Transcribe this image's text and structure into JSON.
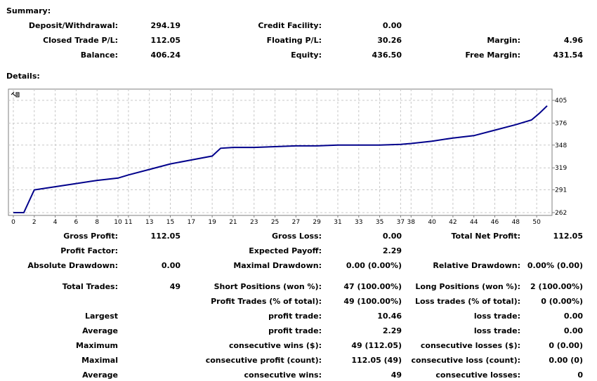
{
  "summary": {
    "title": "Summary:",
    "rows": [
      [
        {
          "label": "Deposit/Withdrawal:",
          "value": "294.19"
        },
        {
          "label": "Credit Facility:",
          "value": "0.00"
        },
        {
          "label": "",
          "value": ""
        }
      ],
      [
        {
          "label": "Closed Trade P/L:",
          "value": "112.05"
        },
        {
          "label": "Floating P/L:",
          "value": "30.26"
        },
        {
          "label": "Margin:",
          "value": "4.96"
        }
      ],
      [
        {
          "label": "Balance:",
          "value": "406.24"
        },
        {
          "label": "Equity:",
          "value": "436.50"
        },
        {
          "label": "Free Margin:",
          "value": "431.54"
        }
      ]
    ]
  },
  "details": {
    "title": "Details:",
    "rows": [
      [
        {
          "label": "Gross Profit:",
          "value": "112.05"
        },
        {
          "label": "Gross Loss:",
          "value": "0.00"
        },
        {
          "label": "Total Net Profit:",
          "value": "112.05"
        }
      ],
      [
        {
          "label": "Profit Factor:",
          "value": ""
        },
        {
          "label": "Expected Payoff:",
          "value": "2.29"
        },
        {
          "label": "",
          "value": ""
        }
      ],
      [
        {
          "label": "Absolute Drawdown:",
          "value": "0.00"
        },
        {
          "label": "Maximal Drawdown:",
          "value": "0.00 (0.00%)"
        },
        {
          "label": "Relative Drawdown:",
          "value": "0.00% (0.00)"
        }
      ],
      [
        {
          "label": "Total Trades:",
          "value": "49"
        },
        {
          "label": "Short Positions (won %):",
          "value": "47 (100.00%)"
        },
        {
          "label": "Long Positions (won %):",
          "value": "2 (100.00%)"
        }
      ],
      [
        {
          "label": "",
          "value": ""
        },
        {
          "label": "Profit Trades (% of total):",
          "value": "49 (100.00%)"
        },
        {
          "label": "Loss trades (% of total):",
          "value": "0 (0.00%)"
        }
      ],
      [
        {
          "label": "Largest",
          "value": ""
        },
        {
          "label": "profit trade:",
          "value": "10.46"
        },
        {
          "label": "loss trade:",
          "value": "0.00"
        }
      ],
      [
        {
          "label": "Average",
          "value": ""
        },
        {
          "label": "profit trade:",
          "value": "2.29"
        },
        {
          "label": "loss trade:",
          "value": "0.00"
        }
      ],
      [
        {
          "label": "Maximum",
          "value": ""
        },
        {
          "label": "consecutive wins ($):",
          "value": "49 (112.05)"
        },
        {
          "label": "consecutive losses ($):",
          "value": "0 (0.00)"
        }
      ],
      [
        {
          "label": "Maximal",
          "value": ""
        },
        {
          "label": "consecutive profit (count):",
          "value": "112.05 (49)"
        },
        {
          "label": "consecutive loss (count):",
          "value": "0.00 (0)"
        }
      ],
      [
        {
          "label": "Average",
          "value": ""
        },
        {
          "label": "consecutive wins:",
          "value": "49"
        },
        {
          "label": "consecutive losses:",
          "value": "0"
        }
      ]
    ]
  },
  "chart_data": {
    "type": "line",
    "corner_icon": "zoom-icon",
    "line_color": "#00008b",
    "grid": true,
    "x_ticks": [
      "0",
      "2",
      "4",
      "6",
      "8",
      "10",
      "11",
      "13",
      "15",
      "17",
      "19",
      "21",
      "23",
      "25",
      "27",
      "29",
      "31",
      "33",
      "35",
      "37",
      "38",
      "40",
      "42",
      "44",
      "46",
      "48",
      "50"
    ],
    "x_range": [
      -0.2,
      51.2
    ],
    "y_ticks": [
      "262",
      "291",
      "319",
      "348",
      "376",
      "405"
    ],
    "ylim": [
      262,
      405
    ],
    "y_tick_values": [
      262,
      291,
      319,
      348,
      376,
      405
    ],
    "x": [
      0,
      1,
      2,
      4,
      6,
      8,
      10,
      11,
      13,
      15,
      17,
      19,
      19.8,
      21,
      23,
      25,
      27,
      29,
      31,
      33,
      35,
      37,
      38,
      40,
      42,
      44,
      46,
      48,
      49.5,
      50.3,
      51
    ],
    "y": [
      262,
      262,
      291,
      295,
      299,
      303,
      306,
      310,
      317,
      324,
      329,
      334,
      344,
      345,
      345,
      346,
      347,
      347,
      348,
      348,
      348,
      349,
      350,
      353,
      357,
      360,
      367,
      374,
      380,
      389,
      398
    ]
  }
}
